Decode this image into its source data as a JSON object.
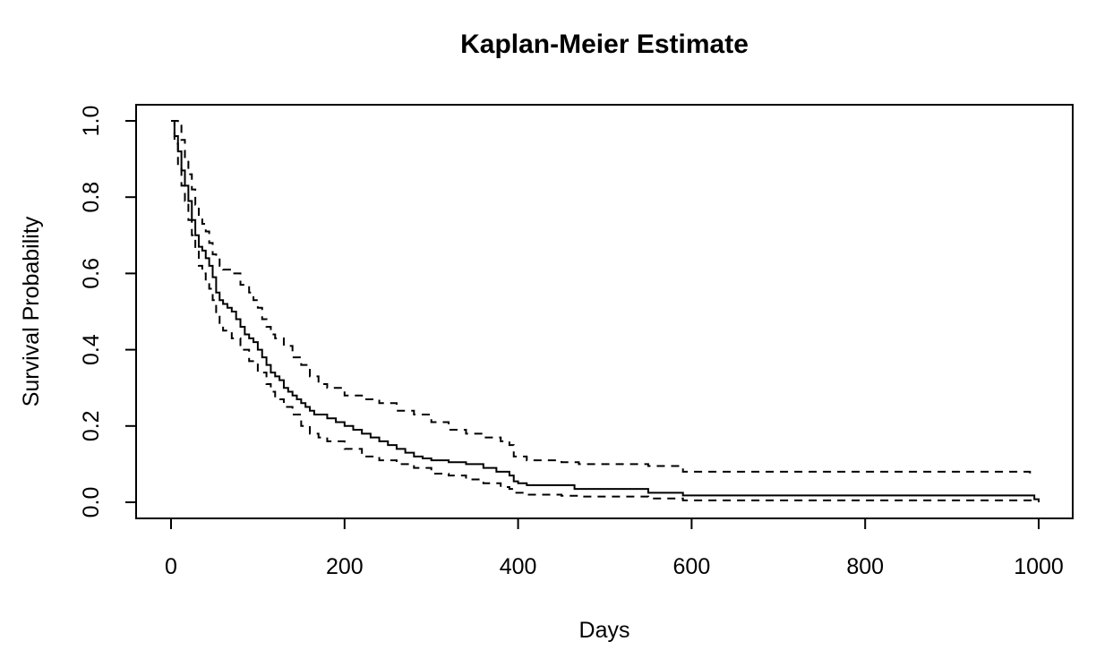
{
  "chart_data": {
    "type": "line",
    "title": "Kaplan-Meier Estimate",
    "xlabel": "Days",
    "ylabel": "Survival Probability",
    "xlim": [
      0,
      1000
    ],
    "ylim": [
      0,
      1
    ],
    "xticks": [
      "0",
      "200",
      "400",
      "600",
      "800",
      "1000"
    ],
    "yticks": [
      "0.0",
      "0.2",
      "0.4",
      "0.6",
      "0.8",
      "1.0"
    ],
    "grid": false,
    "legend": "none",
    "line_color": "#000000",
    "series": [
      {
        "style": "solid",
        "x": [
          0,
          4,
          8,
          12,
          16,
          20,
          24,
          28,
          32,
          36,
          40,
          44,
          48,
          52,
          56,
          60,
          65,
          70,
          75,
          80,
          85,
          90,
          95,
          100,
          105,
          110,
          115,
          120,
          125,
          130,
          135,
          140,
          145,
          150,
          155,
          160,
          165,
          170,
          180,
          190,
          200,
          210,
          220,
          230,
          240,
          250,
          260,
          270,
          280,
          290,
          300,
          320,
          340,
          360,
          375,
          390,
          395,
          400,
          410,
          465,
          550,
          590,
          990,
          995,
          1000
        ],
        "y": [
          1.0,
          0.96,
          0.92,
          0.87,
          0.83,
          0.79,
          0.74,
          0.7,
          0.67,
          0.66,
          0.64,
          0.62,
          0.59,
          0.55,
          0.53,
          0.52,
          0.51,
          0.5,
          0.48,
          0.46,
          0.44,
          0.43,
          0.42,
          0.4,
          0.38,
          0.36,
          0.34,
          0.33,
          0.32,
          0.3,
          0.29,
          0.28,
          0.27,
          0.26,
          0.25,
          0.24,
          0.23,
          0.23,
          0.22,
          0.21,
          0.2,
          0.19,
          0.18,
          0.17,
          0.16,
          0.15,
          0.14,
          0.13,
          0.12,
          0.115,
          0.11,
          0.105,
          0.1,
          0.09,
          0.08,
          0.07,
          0.055,
          0.05,
          0.045,
          0.035,
          0.025,
          0.018,
          0.018,
          0.008,
          0.0
        ]
      },
      {
        "style": "dashed",
        "x": [
          0,
          8,
          12,
          16,
          20,
          24,
          28,
          32,
          36,
          40,
          44,
          48,
          52,
          56,
          60,
          70,
          80,
          90,
          95,
          100,
          105,
          110,
          115,
          120,
          130,
          140,
          150,
          160,
          170,
          180,
          200,
          220,
          240,
          260,
          280,
          300,
          320,
          340,
          360,
          380,
          390,
          395,
          410,
          450,
          470,
          550,
          590,
          990
        ],
        "y": [
          1.0,
          0.99,
          0.95,
          0.9,
          0.86,
          0.82,
          0.78,
          0.75,
          0.73,
          0.71,
          0.68,
          0.65,
          0.64,
          0.62,
          0.61,
          0.6,
          0.57,
          0.55,
          0.53,
          0.51,
          0.48,
          0.46,
          0.44,
          0.43,
          0.41,
          0.38,
          0.36,
          0.33,
          0.31,
          0.3,
          0.28,
          0.27,
          0.26,
          0.24,
          0.23,
          0.21,
          0.19,
          0.18,
          0.17,
          0.16,
          0.15,
          0.12,
          0.11,
          0.105,
          0.1,
          0.095,
          0.08,
          0.07
        ]
      },
      {
        "style": "dashed",
        "x": [
          0,
          4,
          8,
          12,
          16,
          20,
          24,
          28,
          32,
          36,
          40,
          44,
          48,
          52,
          56,
          60,
          70,
          80,
          90,
          100,
          110,
          115,
          120,
          130,
          140,
          150,
          160,
          170,
          180,
          200,
          220,
          240,
          260,
          280,
          300,
          320,
          340,
          360,
          380,
          390,
          395,
          410,
          450,
          470,
          550,
          590,
          990,
          1000
        ],
        "y": [
          1.0,
          0.94,
          0.88,
          0.83,
          0.79,
          0.74,
          0.7,
          0.66,
          0.62,
          0.6,
          0.58,
          0.56,
          0.53,
          0.49,
          0.47,
          0.45,
          0.43,
          0.4,
          0.37,
          0.34,
          0.31,
          0.29,
          0.27,
          0.25,
          0.23,
          0.2,
          0.18,
          0.17,
          0.16,
          0.14,
          0.12,
          0.11,
          0.1,
          0.09,
          0.075,
          0.07,
          0.06,
          0.05,
          0.04,
          0.035,
          0.025,
          0.02,
          0.017,
          0.015,
          0.01,
          0.005,
          0.005,
          0.0
        ]
      }
    ]
  }
}
